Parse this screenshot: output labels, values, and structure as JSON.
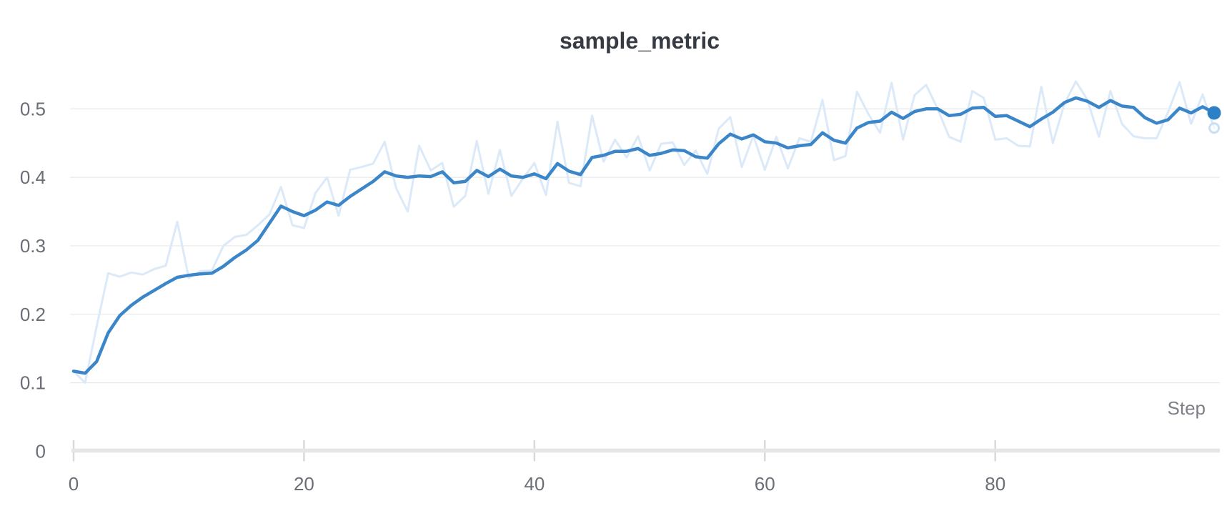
{
  "page": {
    "background": "#ffffff"
  },
  "chart_data": {
    "type": "line",
    "title": "sample_metric",
    "xlabel": "Step",
    "ylabel": "",
    "xlim": [
      0,
      99
    ],
    "ylim": [
      0,
      0.55
    ],
    "grid": "horizontal",
    "legend": "none",
    "x_tick_steps": [
      0,
      20,
      40,
      60,
      80
    ],
    "x_tick_labels": [
      "0",
      "20",
      "40",
      "60",
      "80"
    ],
    "y_tick_values": [
      0,
      0.1,
      0.2,
      0.3,
      0.4,
      0.5
    ],
    "y_tick_labels": [
      "0",
      "0.1",
      "0.2",
      "0.3",
      "0.4",
      "0.5"
    ],
    "colors": {
      "smoothed_line": "#3a86c9",
      "raw_line": "#dbe9f8",
      "end_dot": "#2e80c6",
      "end_ring_stroke": "#cadef4",
      "gridline": "#e8e8e8",
      "axis_baseline": "#e5e5e5",
      "tick_mark": "#d9d9d9",
      "title_text": "#363b43",
      "tick_text": "#6b6e76",
      "step_text": "#7d8087",
      "background": "#ffffff"
    },
    "end_markers": {
      "smoothed_dot": true,
      "raw_ring": true
    },
    "series": [
      {
        "name": "sample_metric (raw)",
        "role": "raw",
        "color": "#dbe9f8",
        "values": [
          0.117,
          0.1,
          0.182,
          0.26,
          0.255,
          0.261,
          0.258,
          0.266,
          0.271,
          0.335,
          0.253,
          0.263,
          0.264,
          0.3,
          0.313,
          0.316,
          0.33,
          0.346,
          0.386,
          0.33,
          0.326,
          0.377,
          0.4,
          0.344,
          0.411,
          0.415,
          0.42,
          0.452,
          0.384,
          0.35,
          0.446,
          0.41,
          0.421,
          0.357,
          0.373,
          0.453,
          0.376,
          0.44,
          0.373,
          0.398,
          0.421,
          0.374,
          0.481,
          0.392,
          0.387,
          0.49,
          0.423,
          0.455,
          0.429,
          0.46,
          0.41,
          0.449,
          0.451,
          0.418,
          0.439,
          0.405,
          0.471,
          0.488,
          0.415,
          0.461,
          0.411,
          0.459,
          0.413,
          0.457,
          0.452,
          0.513,
          0.425,
          0.431,
          0.525,
          0.492,
          0.465,
          0.538,
          0.455,
          0.52,
          0.535,
          0.5,
          0.459,
          0.452,
          0.526,
          0.516,
          0.455,
          0.457,
          0.446,
          0.445,
          0.532,
          0.45,
          0.507,
          0.54,
          0.513,
          0.459,
          0.526,
          0.478,
          0.46,
          0.457,
          0.457,
          0.495,
          0.539,
          0.478,
          0.521,
          0.472
        ]
      },
      {
        "name": "sample_metric (smoothed)",
        "role": "smoothed",
        "color": "#3a86c9",
        "values": [
          0.117,
          0.114,
          0.131,
          0.173,
          0.198,
          0.213,
          0.225,
          0.235,
          0.245,
          0.254,
          0.257,
          0.259,
          0.26,
          0.27,
          0.283,
          0.294,
          0.308,
          0.333,
          0.358,
          0.35,
          0.344,
          0.352,
          0.364,
          0.359,
          0.372,
          0.383,
          0.394,
          0.408,
          0.402,
          0.4,
          0.402,
          0.401,
          0.408,
          0.392,
          0.394,
          0.41,
          0.401,
          0.412,
          0.402,
          0.4,
          0.405,
          0.398,
          0.42,
          0.409,
          0.404,
          0.429,
          0.432,
          0.438,
          0.438,
          0.442,
          0.432,
          0.435,
          0.44,
          0.439,
          0.43,
          0.428,
          0.449,
          0.463,
          0.456,
          0.462,
          0.452,
          0.45,
          0.443,
          0.446,
          0.448,
          0.465,
          0.454,
          0.45,
          0.472,
          0.48,
          0.482,
          0.495,
          0.486,
          0.496,
          0.5,
          0.5,
          0.49,
          0.492,
          0.501,
          0.502,
          0.489,
          0.49,
          0.482,
          0.474,
          0.485,
          0.495,
          0.509,
          0.516,
          0.511,
          0.502,
          0.512,
          0.504,
          0.502,
          0.487,
          0.479,
          0.484,
          0.501,
          0.494,
          0.503,
          0.494
        ]
      }
    ]
  }
}
